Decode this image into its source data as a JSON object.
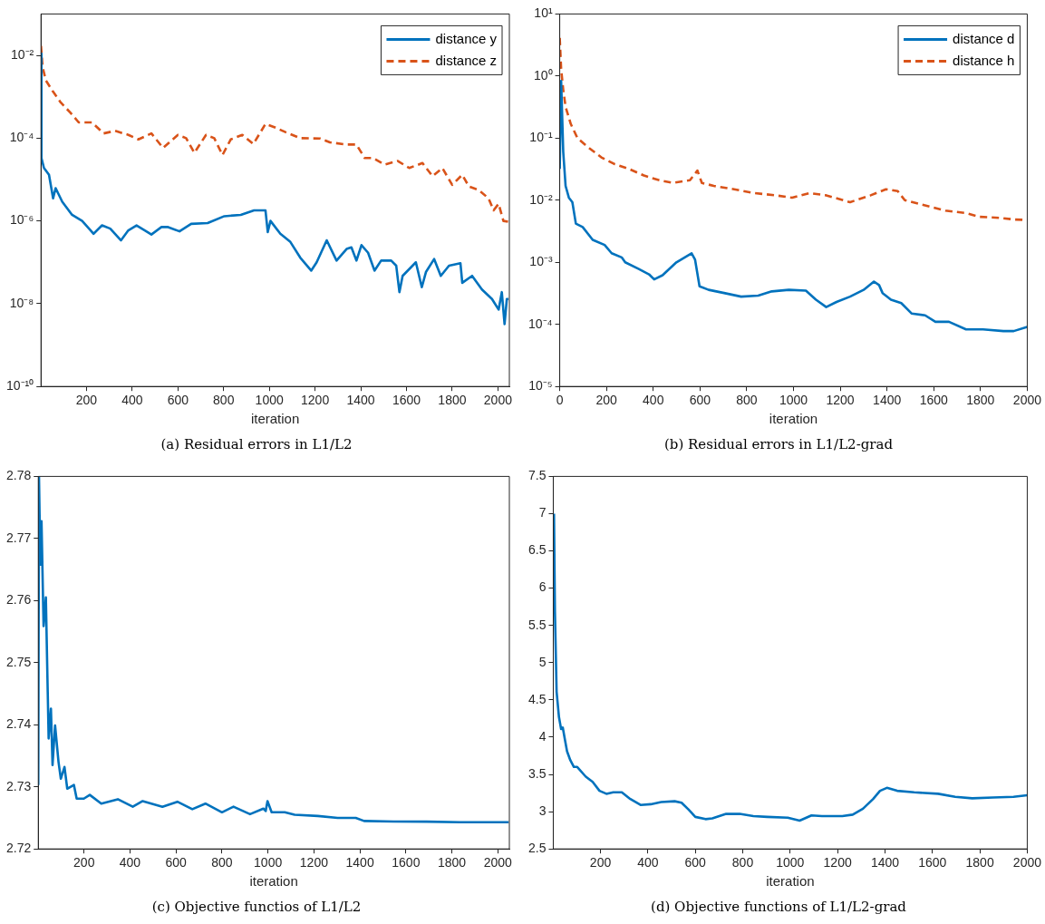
{
  "chart_data": [
    {
      "type": "line",
      "title": "(a) Residual errors in L1/L2",
      "xlabel": "iteration",
      "log": "y",
      "legend": "top right",
      "marker": "none",
      "xlim": [
        1,
        2050
      ],
      "xticks": [
        200,
        400,
        600,
        800,
        1000,
        1200,
        1400,
        1600,
        1800,
        2000
      ],
      "ylim": [
        1e-10,
        0.1
      ],
      "yticks": [
        {
          "value": 1e-10,
          "label": "10⁻¹⁰"
        },
        {
          "value": 1e-08,
          "label": "10⁻⁸"
        },
        {
          "value": 1e-06,
          "label": "10⁻⁶"
        },
        {
          "value": 0.0001,
          "label": "10⁻⁴"
        },
        {
          "value": 0.01,
          "label": "10⁻²"
        }
      ],
      "series": [
        {
          "name": "distance y",
          "color": "#0072bd",
          "line_style": "solid",
          "x": [
            1,
            3,
            14,
            36,
            54,
            65,
            94,
            137,
            181,
            231,
            268,
            304,
            351,
            383,
            419,
            484,
            528,
            557,
            607,
            658,
            730,
            803,
            875,
            933,
            983,
            993,
            1005,
            1048,
            1092,
            1135,
            1183,
            1207,
            1251,
            1294,
            1338,
            1359,
            1381,
            1403,
            1432,
            1460,
            1489,
            1533,
            1555,
            1569,
            1583,
            1641,
            1667,
            1685,
            1721,
            1750,
            1786,
            1836,
            1844,
            1887,
            1930,
            1974,
            2003,
            2017,
            2029,
            2039,
            2046
          ],
          "values": [
            0.011,
            3.3e-05,
            1.9e-05,
            1.3e-05,
            3.5e-06,
            6.2e-06,
            2.9e-06,
            1.4e-06,
            1e-06,
            4.9e-07,
            7.8e-07,
            6.5e-07,
            3.4e-07,
            5.9e-07,
            7.8e-07,
            4.7e-07,
            7.1e-07,
            7.1e-07,
            5.6e-07,
            8.5e-07,
            8.9e-07,
            1.3e-06,
            1.4e-06,
            1.8e-06,
            1.8e-06,
            5.4e-07,
            1e-06,
            4.9e-07,
            3.1e-07,
            1.3e-07,
            6.3e-08,
            1e-07,
            3.4e-07,
            1.1e-07,
            2.1e-07,
            2.3e-07,
            1.1e-07,
            2.6e-07,
            1.7e-07,
            6.3e-08,
            1.1e-07,
            1.1e-07,
            8.3e-08,
            1.9e-08,
            4.7e-08,
            1e-07,
            2.5e-08,
            5.8e-08,
            1.2e-07,
            4.7e-08,
            8.3e-08,
            9.5e-08,
            3.2e-08,
            4.7e-08,
            2.2e-08,
            1.3e-08,
            7.2e-09,
            1.9e-08,
            3.2e-09,
            1.3e-08,
            1.3e-08
          ]
        },
        {
          "name": "distance z",
          "color": "#d95319",
          "line_style": "dashed",
          "x": [
            1,
            8,
            22,
            51,
            87,
            130,
            166,
            224,
            275,
            325,
            383,
            427,
            484,
            535,
            600,
            636,
            672,
            723,
            759,
            795,
            831,
            882,
            930,
            983,
            1027,
            1070,
            1135,
            1222,
            1265,
            1338,
            1381,
            1417,
            1453,
            1504,
            1562,
            1612,
            1670,
            1714,
            1757,
            1800,
            1844,
            1873,
            1916,
            1959,
            1981,
            2003,
            2024,
            2046
          ],
          "values": [
            0.017,
            0.0052,
            0.0025,
            0.0014,
            0.00073,
            0.00041,
            0.00024,
            0.00024,
            0.00013,
            0.00015,
            0.00012,
            9.3e-05,
            0.00013,
            5.8e-05,
            0.00012,
            0.0001,
            4.4e-05,
            0.00012,
            0.0001,
            3.9e-05,
            9.3e-05,
            0.00012,
            7.2e-05,
            0.00022,
            0.00018,
            0.00014,
            0.0001,
            9.8e-05,
            7.9e-05,
            7e-05,
            7e-05,
            3.3e-05,
            3.3e-05,
            2.3e-05,
            2.8e-05,
            1.9e-05,
            2.5e-05,
            1.2e-05,
            1.9e-05,
            7.4e-06,
            1.3e-05,
            6.8e-06,
            5.6e-06,
            3.5e-06,
            1.8e-06,
            2.6e-06,
            1e-06,
            9.5e-07
          ]
        }
      ]
    },
    {
      "type": "line",
      "title": "(b) Residual errors in L1/L2-grad",
      "xlabel": "iteration",
      "log": "y",
      "legend": "top right",
      "marker": "none",
      "xlim": [
        0,
        2000
      ],
      "xticks": [
        0,
        200,
        400,
        600,
        800,
        1000,
        1200,
        1400,
        1600,
        1800,
        2000
      ],
      "ylim": [
        1e-05,
        10
      ],
      "yticks": [
        {
          "value": 1e-05,
          "label": "10⁻⁵"
        },
        {
          "value": 0.0001,
          "label": "10⁻⁴"
        },
        {
          "value": 0.001,
          "label": "10⁻³"
        },
        {
          "value": 0.01,
          "label": "10⁻²"
        },
        {
          "value": 0.1,
          "label": "10⁻¹"
        },
        {
          "value": 1,
          "label": "10⁰"
        },
        {
          "value": 10,
          "label": "10¹"
        }
      ],
      "series": [
        {
          "name": "distance d",
          "color": "#0072bd",
          "line_style": "solid",
          "x": [
            0,
            6,
            15,
            25,
            39,
            54,
            69,
            98,
            141,
            192,
            222,
            265,
            280,
            338,
            382,
            404,
            440,
            499,
            564,
            579,
            598,
            637,
            703,
            776,
            849,
            907,
            980,
            1053,
            1096,
            1140,
            1184,
            1242,
            1300,
            1344,
            1366,
            1381,
            1417,
            1461,
            1505,
            1563,
            1607,
            1665,
            1738,
            1811,
            1898,
            1942,
            2000
          ],
          "values": [
            0.032,
            0.83,
            0.06,
            0.017,
            0.011,
            0.0093,
            0.0042,
            0.0037,
            0.0023,
            0.0019,
            0.0014,
            0.0012,
            0.001,
            0.00078,
            0.00064,
            0.00053,
            0.00062,
            0.001,
            0.0014,
            0.0011,
            0.00041,
            0.00036,
            0.00032,
            0.00028,
            0.00029,
            0.00034,
            0.00036,
            0.00035,
            0.00025,
            0.00019,
            0.00023,
            0.00028,
            0.00036,
            0.00049,
            0.00043,
            0.00032,
            0.00025,
            0.00022,
            0.00015,
            0.00014,
            0.00011,
            0.00011,
            8.3e-05,
            8.3e-05,
            7.8e-05,
            7.8e-05,
            9.1e-05
          ]
        },
        {
          "name": "distance h",
          "color": "#d95319",
          "line_style": "dashed",
          "x": [
            0,
            6,
            15,
            25,
            47,
            76,
            120,
            178,
            236,
            295,
            360,
            426,
            484,
            557,
            589,
            608,
            659,
            746,
            834,
            921,
            994,
            1067,
            1140,
            1242,
            1330,
            1395,
            1446,
            1476,
            1548,
            1650,
            1738,
            1796,
            1884,
            1942,
            2000
          ],
          "values": [
            4.1,
            1.3,
            0.6,
            0.32,
            0.17,
            0.1,
            0.072,
            0.049,
            0.038,
            0.032,
            0.025,
            0.021,
            0.019,
            0.021,
            0.03,
            0.019,
            0.017,
            0.015,
            0.013,
            0.012,
            0.011,
            0.013,
            0.012,
            0.0093,
            0.012,
            0.015,
            0.014,
            0.01,
            0.0085,
            0.0068,
            0.0062,
            0.0054,
            0.0052,
            0.0049,
            0.0048
          ]
        }
      ]
    },
    {
      "type": "line",
      "title": "(c) Objective functios of L1/L2",
      "xlabel": "iteration",
      "marker": "none",
      "xlim": [
        1,
        2050
      ],
      "xticks": [
        200,
        400,
        600,
        800,
        1000,
        1200,
        1400,
        1600,
        1800,
        2000
      ],
      "ylim": [
        2.72,
        2.78
      ],
      "yticks": [
        2.72,
        2.73,
        2.74,
        2.75,
        2.76,
        2.77,
        2.78
      ],
      "series": [
        {
          "color": "#0072bd",
          "line_style": "solid",
          "x": [
            1,
            4,
            10,
            15,
            24,
            34,
            46,
            56,
            63,
            74,
            89,
            99,
            115,
            127,
            156,
            168,
            199,
            225,
            275,
            347,
            412,
            455,
            541,
            606,
            671,
            728,
            800,
            850,
            922,
            980,
            990,
            998,
            1016,
            1073,
            1116,
            1217,
            1303,
            1382,
            1418,
            1547,
            1691,
            1835,
            2047
          ],
          "values": [
            2.7303,
            2.78,
            2.7658,
            2.7728,
            2.7559,
            2.7605,
            2.7378,
            2.7426,
            2.7335,
            2.7399,
            2.734,
            2.7313,
            2.7332,
            2.7297,
            2.7303,
            2.7281,
            2.7281,
            2.7287,
            2.7273,
            2.728,
            2.7268,
            2.7277,
            2.7268,
            2.7276,
            2.7264,
            2.7273,
            2.7259,
            2.7268,
            2.7256,
            2.7265,
            2.7261,
            2.7277,
            2.7259,
            2.7259,
            2.7255,
            2.7253,
            2.725,
            2.725,
            2.7245,
            2.7244,
            2.7244,
            2.7243,
            2.7243
          ]
        }
      ]
    },
    {
      "type": "line",
      "title": "(d) Objective functions of L1/L2-grad",
      "xlabel": "iteration",
      "marker": "none",
      "xlim": [
        1,
        2000
      ],
      "xticks": [
        200,
        400,
        600,
        800,
        1000,
        1200,
        1400,
        1600,
        1800,
        2000
      ],
      "ylim": [
        2.5,
        7.5
      ],
      "yticks": [
        2.5,
        3,
        3.5,
        4,
        4.5,
        5,
        5.5,
        6,
        6.5,
        7,
        7.5
      ],
      "series": [
        {
          "color": "#0072bd",
          "line_style": "solid",
          "x": [
            4,
            8,
            15,
            25,
            34,
            41,
            51,
            59,
            73,
            88,
            102,
            138,
            167,
            196,
            225,
            254,
            290,
            326,
            369,
            412,
            456,
            513,
            542,
            571,
            600,
            643,
            672,
            730,
            787,
            845,
            903,
            990,
            1040,
            1090,
            1134,
            1220,
            1264,
            1307,
            1350,
            1379,
            1408,
            1451,
            1523,
            1624,
            1696,
            1768,
            1855,
            1942,
            2000
          ],
          "values": [
            7.0,
            5.68,
            4.61,
            4.27,
            4.11,
            4.13,
            3.95,
            3.81,
            3.69,
            3.6,
            3.6,
            3.47,
            3.4,
            3.28,
            3.24,
            3.26,
            3.26,
            3.17,
            3.09,
            3.1,
            3.13,
            3.14,
            3.12,
            3.03,
            2.93,
            2.9,
            2.91,
            2.97,
            2.97,
            2.94,
            2.93,
            2.92,
            2.88,
            2.95,
            2.94,
            2.94,
            2.96,
            3.04,
            3.17,
            3.28,
            3.32,
            3.28,
            3.26,
            3.24,
            3.2,
            3.18,
            3.19,
            3.2,
            3.22
          ]
        }
      ]
    }
  ]
}
